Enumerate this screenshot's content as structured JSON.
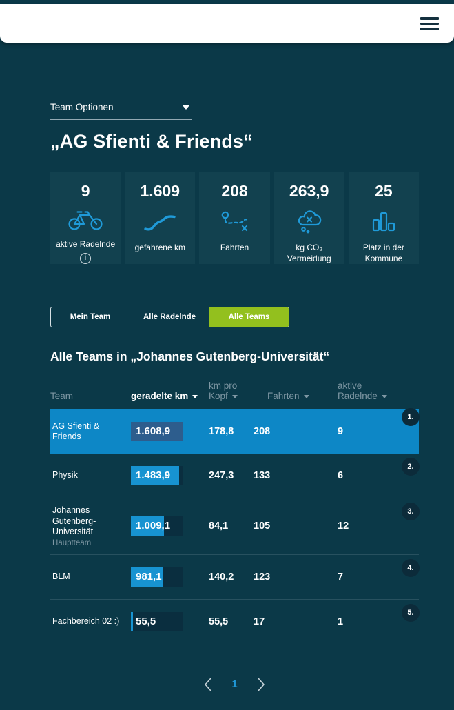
{
  "header": {
    "menu_icon": "hamburger-menu"
  },
  "team_options": {
    "label": "Team Optionen"
  },
  "page_title": "„AG Sfienti & Friends“",
  "stats": [
    {
      "value": "9",
      "label": "aktive Radelnde",
      "icon": "bicycle-icon",
      "has_info": true
    },
    {
      "value": "1.609",
      "label": "gefahrene km",
      "icon": "road-icon",
      "has_info": false
    },
    {
      "value": "208",
      "label": "Fahrten",
      "icon": "route-icon",
      "has_info": false
    },
    {
      "value": "263,9",
      "label": "kg CO₂ Vermeidung",
      "icon": "co2-cloud-icon",
      "has_info": false
    },
    {
      "value": "25",
      "label": "Platz in der Kommune",
      "icon": "ranking-icon",
      "has_info": false
    }
  ],
  "tabs": [
    {
      "label": "Mein Team",
      "active": false
    },
    {
      "label": "Alle Radelnde",
      "active": false
    },
    {
      "label": "Alle Teams",
      "active": true
    }
  ],
  "section_title": "Alle Teams in „Johannes Gutenberg-Universität“",
  "table": {
    "headers": {
      "team": "Team",
      "km": "geradelte km",
      "km_pro_kopf": "km pro Kopf",
      "fahrten": "Fahrten",
      "aktive": "aktive Radelnde"
    },
    "sorted_column": "geradelte km",
    "max_km": 1608.9,
    "rows": [
      {
        "rank": "1.",
        "team": "AG Sfienti & Friends",
        "subtitle": "",
        "km": "1.608,9",
        "km_value": 1608.9,
        "km_pro_kopf": "178,8",
        "fahrten": "208",
        "aktive": "9",
        "highlighted": true
      },
      {
        "rank": "2.",
        "team": "Physik",
        "subtitle": "",
        "km": "1.483,9",
        "km_value": 1483.9,
        "km_pro_kopf": "247,3",
        "fahrten": "133",
        "aktive": "6",
        "highlighted": false
      },
      {
        "rank": "3.",
        "team": "Johannes Gutenberg-Universität",
        "subtitle": "Hauptteam",
        "km": "1.009,1",
        "km_value": 1009.1,
        "km_pro_kopf": "84,1",
        "fahrten": "105",
        "aktive": "12",
        "highlighted": false
      },
      {
        "rank": "4.",
        "team": "BLM",
        "subtitle": "",
        "km": "981,1",
        "km_value": 981.1,
        "km_pro_kopf": "140,2",
        "fahrten": "123",
        "aktive": "7",
        "highlighted": false
      },
      {
        "rank": "5.",
        "team": "Fachbereich 02 :)",
        "subtitle": "",
        "km": "55,5",
        "km_value": 55.5,
        "km_pro_kopf": "55,5",
        "fahrten": "17",
        "aktive": "1",
        "highlighted": false
      }
    ]
  },
  "pagination": {
    "current_page": "1"
  },
  "colors": {
    "background": "#0b3948",
    "card_background": "#12414f",
    "accent_blue": "#1793d1",
    "highlight_row": "#0d87c6",
    "highlight_bar": "#2d5d8d",
    "active_tab_green": "#93c01e",
    "muted_text": "#7e97a3",
    "rank_badge": "#0c2b3a"
  }
}
